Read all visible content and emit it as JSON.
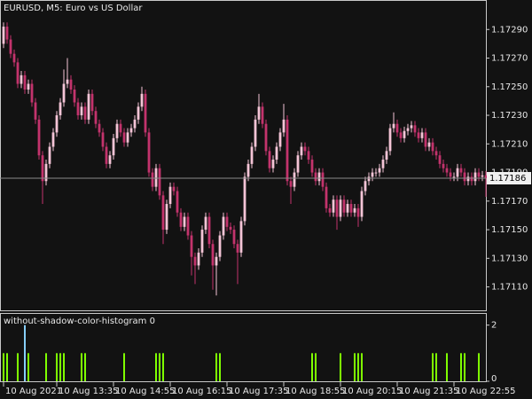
{
  "chart_data": [
    {
      "type": "candlestick",
      "title": "EURUSD, M5:  Euro vs US Dollar",
      "up_color": "#f4c4d6",
      "down_color": "#c3336c",
      "wick_color": "#c3336c",
      "open": [
        1.1728,
        1.17292,
        1.17283,
        1.17273,
        1.17267,
        1.17252,
        1.17258,
        1.17248,
        1.17252,
        1.17239,
        1.17227,
        1.17202,
        1.17184,
        1.17196,
        1.17208,
        1.17218,
        1.1723,
        1.17239,
        1.17252,
        1.17255,
        1.17248,
        1.17239,
        1.1723,
        1.17236,
        1.17227,
        1.17245,
        1.17233,
        1.17224,
        1.17218,
        1.17208,
        1.17196,
        1.17202,
        1.17214,
        1.17224,
        1.17218,
        1.17211,
        1.17218,
        1.17221,
        1.17227,
        1.17236,
        1.17245,
        1.17218,
        1.1719,
        1.1718,
        1.17193,
        1.17174,
        1.1715,
        1.17168,
        1.1718,
        1.17177,
        1.17162,
        1.17152,
        1.17159,
        1.17146,
        1.17131,
        1.17125,
        1.17134,
        1.1715,
        1.17159,
        1.1714,
        1.17125,
        1.17131,
        1.17146,
        1.17159,
        1.17152,
        1.1715,
        1.1714,
        1.17134,
        1.17156,
        1.17187,
        1.17196,
        1.17208,
        1.17227,
        1.17236,
        1.17224,
        1.17205,
        1.17193,
        1.17199,
        1.17208,
        1.17218,
        1.17227,
        1.17184,
        1.1718,
        1.1719,
        1.17202,
        1.17208,
        1.17205,
        1.17199,
        1.1719,
        1.17184,
        1.1719,
        1.1718,
        1.17165,
        1.17162,
        1.17171,
        1.17159,
        1.17171,
        1.17162,
        1.17168,
        1.17162,
        1.17165,
        1.17159,
        1.17177,
        1.17184,
        1.17187,
        1.1719,
        1.1719,
        1.17193,
        1.17199,
        1.17205,
        1.17221,
        1.17224,
        1.17218,
        1.17214,
        1.17219,
        1.17221,
        1.17223,
        1.17218,
        1.17214,
        1.17218,
        1.17208,
        1.17211,
        1.17205,
        1.17202,
        1.17196,
        1.17193,
        1.1719,
        1.17187,
        1.17187,
        1.17193,
        1.1719,
        1.17184,
        1.17187,
        1.17184,
        1.1719,
        1.17187,
        1.17188
      ],
      "high": [
        1.17295,
        1.17295,
        1.17286,
        1.17276,
        1.1727,
        1.17261,
        1.17261,
        1.17255,
        1.17255,
        1.17242,
        1.1723,
        1.17205,
        1.17199,
        1.17211,
        1.17221,
        1.17233,
        1.17242,
        1.17262,
        1.1727,
        1.17258,
        1.17251,
        1.17242,
        1.17239,
        1.17239,
        1.17248,
        1.17248,
        1.17236,
        1.17227,
        1.17221,
        1.17211,
        1.17205,
        1.17217,
        1.17227,
        1.17227,
        1.17221,
        1.17221,
        1.17224,
        1.1723,
        1.17239,
        1.1725,
        1.17248,
        1.17221,
        1.17193,
        1.17196,
        1.17196,
        1.17177,
        1.17171,
        1.17183,
        1.17183,
        1.1718,
        1.17165,
        1.17162,
        1.17162,
        1.17149,
        1.17134,
        1.17137,
        1.17153,
        1.17162,
        1.17162,
        1.17143,
        1.17134,
        1.17149,
        1.17162,
        1.17162,
        1.17155,
        1.17153,
        1.17143,
        1.17159,
        1.1719,
        1.17199,
        1.17211,
        1.1723,
        1.17245,
        1.17239,
        1.17227,
        1.17208,
        1.17202,
        1.17211,
        1.17221,
        1.17238,
        1.1723,
        1.17187,
        1.17193,
        1.17205,
        1.17211,
        1.17211,
        1.17208,
        1.17202,
        1.17193,
        1.17193,
        1.17193,
        1.17183,
        1.17168,
        1.17174,
        1.17174,
        1.17174,
        1.17174,
        1.17171,
        1.17171,
        1.17168,
        1.17168,
        1.1718,
        1.17187,
        1.1719,
        1.17193,
        1.17193,
        1.17196,
        1.17202,
        1.17208,
        1.17224,
        1.17232,
        1.17227,
        1.17221,
        1.17222,
        1.17224,
        1.17226,
        1.17226,
        1.17221,
        1.17221,
        1.17221,
        1.17214,
        1.17214,
        1.17208,
        1.17205,
        1.17199,
        1.17196,
        1.17193,
        1.1719,
        1.17196,
        1.17196,
        1.17193,
        1.1719,
        1.1719,
        1.17193,
        1.17193,
        1.17191,
        1.17191
      ],
      "low": [
        1.17277,
        1.1728,
        1.1727,
        1.17264,
        1.17249,
        1.17249,
        1.17245,
        1.17245,
        1.17236,
        1.17224,
        1.17199,
        1.17168,
        1.17181,
        1.17193,
        1.17205,
        1.17215,
        1.17227,
        1.17236,
        1.17249,
        1.17245,
        1.17236,
        1.17227,
        1.17227,
        1.17224,
        1.17224,
        1.1723,
        1.17221,
        1.17215,
        1.17205,
        1.17193,
        1.17193,
        1.17199,
        1.17211,
        1.17215,
        1.17208,
        1.17208,
        1.17215,
        1.17218,
        1.17224,
        1.17233,
        1.17215,
        1.17187,
        1.17177,
        1.17177,
        1.17171,
        1.1714,
        1.17147,
        1.17165,
        1.17174,
        1.17159,
        1.17149,
        1.17149,
        1.17143,
        1.17118,
        1.17112,
        1.17122,
        1.17131,
        1.17147,
        1.17137,
        1.17108,
        1.17104,
        1.17128,
        1.17143,
        1.17149,
        1.17147,
        1.17137,
        1.17112,
        1.17131,
        1.17153,
        1.17184,
        1.17193,
        1.17205,
        1.17224,
        1.17221,
        1.17202,
        1.1719,
        1.1719,
        1.17196,
        1.17205,
        1.17215,
        1.17181,
        1.17168,
        1.17177,
        1.17187,
        1.17199,
        1.17202,
        1.17196,
        1.17187,
        1.17181,
        1.17181,
        1.17177,
        1.17162,
        1.17159,
        1.17159,
        1.1715,
        1.17156,
        1.17159,
        1.17159,
        1.17159,
        1.17159,
        1.17152,
        1.17156,
        1.17174,
        1.17181,
        1.17184,
        1.17187,
        1.17187,
        1.1719,
        1.17196,
        1.17202,
        1.17218,
        1.17215,
        1.17211,
        1.17211,
        1.17216,
        1.17218,
        1.17215,
        1.17211,
        1.17211,
        1.17205,
        1.17205,
        1.17202,
        1.17199,
        1.17193,
        1.1719,
        1.17187,
        1.17184,
        1.17184,
        1.17184,
        1.17187,
        1.17181,
        1.17181,
        1.17181,
        1.17181,
        1.17184,
        1.17184,
        1.17173
      ],
      "close": [
        1.17292,
        1.17283,
        1.17273,
        1.17267,
        1.17252,
        1.17258,
        1.17248,
        1.17252,
        1.17239,
        1.17227,
        1.17202,
        1.17184,
        1.17196,
        1.17208,
        1.17218,
        1.1723,
        1.17239,
        1.17252,
        1.17255,
        1.17248,
        1.17239,
        1.1723,
        1.17236,
        1.17227,
        1.17245,
        1.17233,
        1.17224,
        1.17218,
        1.17208,
        1.17196,
        1.17202,
        1.17214,
        1.17224,
        1.17218,
        1.17211,
        1.17218,
        1.17221,
        1.17227,
        1.17236,
        1.17245,
        1.17218,
        1.1719,
        1.1718,
        1.17193,
        1.17174,
        1.1715,
        1.17168,
        1.1718,
        1.17177,
        1.17162,
        1.17152,
        1.17159,
        1.17146,
        1.17131,
        1.17125,
        1.17134,
        1.1715,
        1.17159,
        1.1714,
        1.17125,
        1.17131,
        1.17146,
        1.17159,
        1.17152,
        1.1715,
        1.1714,
        1.17134,
        1.17156,
        1.17187,
        1.17196,
        1.17208,
        1.17227,
        1.17236,
        1.17224,
        1.17205,
        1.17193,
        1.17199,
        1.17208,
        1.17218,
        1.17227,
        1.17184,
        1.1718,
        1.1719,
        1.17202,
        1.17208,
        1.17205,
        1.17199,
        1.1719,
        1.17184,
        1.1719,
        1.1718,
        1.17165,
        1.17162,
        1.17171,
        1.17159,
        1.17171,
        1.17162,
        1.17168,
        1.17162,
        1.17165,
        1.17159,
        1.17177,
        1.17184,
        1.17187,
        1.1719,
        1.1719,
        1.17193,
        1.17199,
        1.17205,
        1.17221,
        1.17224,
        1.17218,
        1.17214,
        1.17219,
        1.17221,
        1.17223,
        1.17218,
        1.17214,
        1.17218,
        1.17208,
        1.17211,
        1.17205,
        1.17202,
        1.17196,
        1.17193,
        1.1719,
        1.17187,
        1.17187,
        1.17193,
        1.1719,
        1.17184,
        1.17187,
        1.17184,
        1.1719,
        1.17187,
        1.17188,
        1.17186
      ],
      "xlim": [
        -1,
        136
      ],
      "xticks": [
        {
          "value": 0,
          "label": "10 Aug 2021"
        },
        {
          "value": 15,
          "label": "10 Aug 13:35"
        },
        {
          "value": 31,
          "label": "10 Aug 14:55"
        },
        {
          "value": 47,
          "label": "10 Aug 16:15"
        },
        {
          "value": 63,
          "label": "10 Aug 17:35"
        },
        {
          "value": 79,
          "label": "10 Aug 18:55"
        },
        {
          "value": 95,
          "label": "10 Aug 20:15"
        },
        {
          "value": 111,
          "label": "10 Aug 21:35"
        },
        {
          "value": 127,
          "label": "10 Aug 22:55"
        }
      ],
      "ylim": [
        1.17093,
        1.1731
      ],
      "yticks": [
        {
          "value": 1.1711,
          "label": "1.17110"
        },
        {
          "value": 1.1713,
          "label": "1.17130"
        },
        {
          "value": 1.1715,
          "label": "1.17150"
        },
        {
          "value": 1.1717,
          "label": "1.17170"
        },
        {
          "value": 1.1719,
          "label": "1.17190"
        },
        {
          "value": 1.1721,
          "label": "1.17210"
        },
        {
          "value": 1.1723,
          "label": "1.17230"
        },
        {
          "value": 1.1725,
          "label": "1.17250"
        },
        {
          "value": 1.1727,
          "label": "1.17270"
        },
        {
          "value": 1.1729,
          "label": "1.17290"
        }
      ],
      "last_price": {
        "value": 1.17186,
        "label": "1.17186"
      }
    },
    {
      "type": "bar",
      "title": "without-shadow-color-histogram 0",
      "x": [
        0,
        1,
        4,
        6,
        7,
        12,
        15,
        16,
        17,
        22,
        23,
        34,
        43,
        44,
        45,
        60,
        61,
        87,
        88,
        95,
        99,
        100,
        101,
        121,
        122,
        125,
        129,
        130,
        134
      ],
      "values": [
        1,
        1,
        1,
        2,
        1,
        1,
        1,
        1,
        1,
        1,
        1,
        1,
        1,
        1,
        1,
        1,
        1,
        1,
        1,
        1,
        1,
        1,
        1,
        1,
        1,
        1,
        1,
        1,
        1
      ],
      "colors": [
        "#7fff00",
        "#7fff00",
        "#7fff00",
        "#87cefa",
        "#7fff00",
        "#7fff00",
        "#7fff00",
        "#7fff00",
        "#7fff00",
        "#7fff00",
        "#7fff00",
        "#7fff00",
        "#7fff00",
        "#7fff00",
        "#7fff00",
        "#7fff00",
        "#7fff00",
        "#7fff00",
        "#7fff00",
        "#7fff00",
        "#7fff00",
        "#7fff00",
        "#7fff00",
        "#7fff00",
        "#7fff00",
        "#7fff00",
        "#7fff00",
        "#7fff00",
        "#7fff00"
      ],
      "ylim": [
        0,
        2.4
      ],
      "yticks": [
        0,
        2
      ]
    }
  ]
}
